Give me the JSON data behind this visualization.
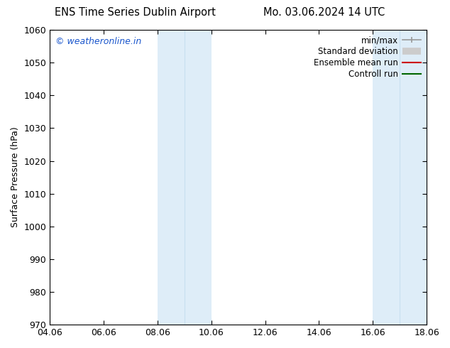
{
  "title_left": "ENS Time Series Dublin Airport",
  "title_right": "Mo. 03.06.2024 14 UTC",
  "ylabel": "Surface Pressure (hPa)",
  "ylim": [
    970,
    1060
  ],
  "yticks": [
    970,
    980,
    990,
    1000,
    1010,
    1020,
    1030,
    1040,
    1050,
    1060
  ],
  "xticks_labels": [
    "04.06",
    "06.06",
    "08.06",
    "10.06",
    "12.06",
    "14.06",
    "16.06",
    "18.06"
  ],
  "xticks_vals": [
    0,
    2,
    4,
    6,
    8,
    10,
    12,
    14
  ],
  "xlim": [
    0,
    14
  ],
  "shaded_regions": [
    {
      "xstart": 4.0,
      "xend": 5.0,
      "xmid": 4.5,
      "color": "#deedf8"
    },
    {
      "xstart": 5.0,
      "xend": 6.0,
      "xmid": 5.5,
      "color": "#deedf8"
    },
    {
      "xstart": 12.0,
      "xend": 13.0,
      "xmid": 12.5,
      "color": "#deedf8"
    },
    {
      "xstart": 13.0,
      "xend": 14.0,
      "xmid": 13.5,
      "color": "#deedf8"
    }
  ],
  "shaded_band_dividers": [
    5.0,
    13.0
  ],
  "watermark_text": "© weatheronline.in",
  "watermark_color": "#1a56cc",
  "legend_entries": [
    {
      "label": "min/max",
      "color": "#999999",
      "lw": 1.2,
      "style": "minmax"
    },
    {
      "label": "Standard deviation",
      "color": "#cccccc",
      "lw": 7,
      "style": "thick"
    },
    {
      "label": "Ensemble mean run",
      "color": "#cc0000",
      "lw": 1.5,
      "style": "line"
    },
    {
      "label": "Controll run",
      "color": "#006600",
      "lw": 1.5,
      "style": "line"
    }
  ],
  "bg_color": "#ffffff",
  "plot_bg_color": "#ffffff",
  "font_size": 9,
  "title_font_size": 10.5,
  "watermark_font_size": 9
}
